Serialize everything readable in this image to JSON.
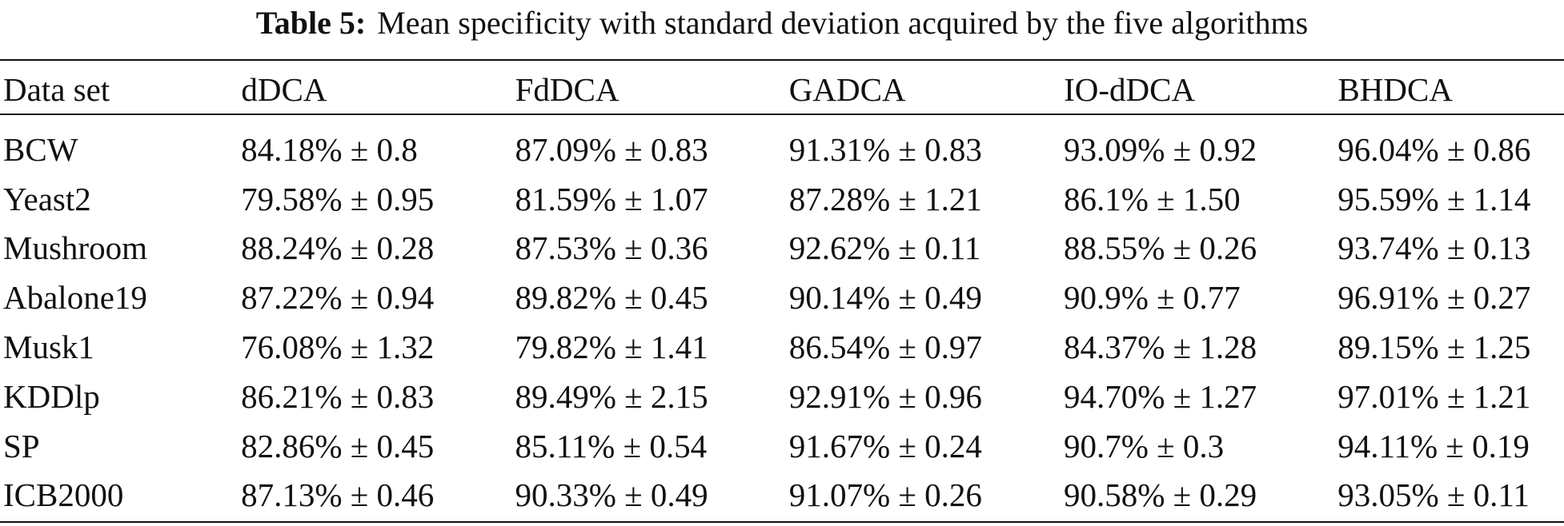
{
  "caption": {
    "label": "Table 5:",
    "text": "Mean specificity with standard deviation acquired by the five algorithms"
  },
  "table": {
    "headers": [
      "Data set",
      "dDCA",
      "FdDCA",
      "GADCA",
      "IO-dDCA",
      "BHDCA"
    ],
    "rows": [
      {
        "name": "BCW",
        "values": [
          "84.18% ± 0.8",
          "87.09% ± 0.83",
          "91.31% ± 0.83",
          "93.09% ± 0.92",
          "96.04% ± 0.86"
        ]
      },
      {
        "name": "Yeast2",
        "values": [
          "79.58% ± 0.95",
          "81.59% ± 1.07",
          "87.28% ± 1.21",
          "86.1% ± 1.50",
          "95.59% ± 1.14"
        ]
      },
      {
        "name": "Mushroom",
        "values": [
          "88.24% ± 0.28",
          "87.53% ± 0.36",
          "92.62% ± 0.11",
          "88.55% ± 0.26",
          "93.74% ± 0.13"
        ]
      },
      {
        "name": "Abalone19",
        "values": [
          "87.22% ± 0.94",
          "89.82% ± 0.45",
          "90.14% ± 0.49",
          "90.9% ± 0.77",
          "96.91% ± 0.27"
        ]
      },
      {
        "name": "Musk1",
        "values": [
          "76.08% ± 1.32",
          "79.82% ± 1.41",
          "86.54% ± 0.97",
          "84.37% ± 1.28",
          "89.15% ± 1.25"
        ]
      },
      {
        "name": "KDDlp",
        "values": [
          "86.21% ± 0.83",
          "89.49% ± 2.15",
          "92.91% ± 0.96",
          "94.70% ± 1.27",
          "97.01% ± 1.21"
        ]
      },
      {
        "name": "SP",
        "values": [
          "82.86% ± 0.45",
          "85.11% ± 0.54",
          "91.67% ± 0.24",
          "90.7% ± 0.3",
          "94.11% ± 0.19"
        ]
      },
      {
        "name": "ICB2000",
        "values": [
          "87.13% ± 0.46",
          "90.33% ± 0.49",
          "91.07% ± 0.26",
          "90.58% ± 0.29",
          "93.05% ± 0.11"
        ]
      }
    ]
  }
}
